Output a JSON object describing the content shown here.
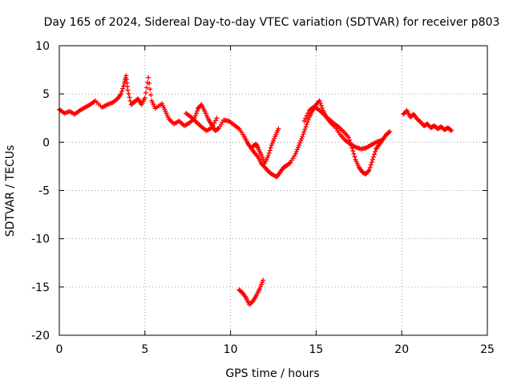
{
  "chart_data": {
    "type": "scatter",
    "title": "Day 165 of 2024, Sidereal Day-to-day VTEC variation (SDTVAR) for receiver p803",
    "xlabel": "GPS time / hours",
    "ylabel": "SDTVAR / TECUs",
    "xlim": [
      0,
      25
    ],
    "ylim": [
      -20,
      10
    ],
    "xticks": [
      0,
      5,
      10,
      15,
      20,
      25
    ],
    "xtick_labels": [
      "0",
      "5",
      "10",
      "15",
      "20",
      "25"
    ],
    "yticks": [
      10,
      5,
      0,
      -5,
      -10,
      -15,
      -20
    ],
    "ytick_labels": [
      "10",
      "5",
      "0",
      "-5",
      "-10",
      "-15",
      "-20"
    ],
    "grid": true,
    "legend": "none",
    "marker": "+",
    "color": "#ff0000",
    "series": [
      {
        "name": "SDTVAR",
        "points": [
          [
            0.0,
            3.4
          ],
          [
            0.3,
            3.0
          ],
          [
            0.6,
            3.2
          ],
          [
            0.9,
            2.9
          ],
          [
            1.2,
            3.3
          ],
          [
            1.5,
            3.6
          ],
          [
            1.8,
            3.9
          ],
          [
            2.1,
            4.3
          ],
          [
            2.5,
            3.6
          ],
          [
            2.8,
            3.9
          ],
          [
            3.1,
            4.1
          ],
          [
            3.4,
            4.5
          ],
          [
            3.6,
            5.0
          ],
          [
            3.8,
            6.1
          ],
          [
            3.9,
            6.9
          ],
          [
            4.0,
            5.4
          ],
          [
            4.2,
            3.9
          ],
          [
            4.4,
            4.2
          ],
          [
            4.6,
            4.5
          ],
          [
            4.8,
            3.9
          ],
          [
            5.0,
            4.6
          ],
          [
            5.2,
            6.7
          ],
          [
            5.4,
            4.3
          ],
          [
            5.6,
            3.5
          ],
          [
            6.0,
            4.0
          ],
          [
            6.2,
            3.2
          ],
          [
            6.4,
            2.4
          ],
          [
            6.7,
            1.9
          ],
          [
            7.0,
            2.2
          ],
          [
            7.3,
            1.7
          ],
          [
            7.6,
            2.0
          ],
          [
            7.9,
            2.5
          ],
          [
            8.1,
            3.5
          ],
          [
            8.3,
            3.9
          ],
          [
            8.5,
            3.2
          ],
          [
            8.7,
            2.4
          ],
          [
            8.9,
            1.8
          ],
          [
            9.1,
            1.2
          ],
          [
            9.3,
            1.4
          ],
          [
            9.6,
            2.3
          ],
          [
            9.9,
            2.2
          ],
          [
            10.2,
            1.8
          ],
          [
            10.5,
            1.4
          ],
          [
            10.8,
            0.6
          ],
          [
            11.0,
            -0.1
          ],
          [
            11.2,
            -0.6
          ],
          [
            11.4,
            -1.1
          ],
          [
            11.6,
            -1.5
          ],
          [
            11.8,
            -2.2
          ],
          [
            12.0,
            -2.6
          ],
          [
            12.2,
            -3.0
          ],
          [
            12.4,
            -3.3
          ],
          [
            12.7,
            -3.6
          ],
          [
            12.9,
            -3.1
          ],
          [
            13.1,
            -2.6
          ],
          [
            13.3,
            -2.4
          ],
          [
            13.5,
            -2.1
          ],
          [
            13.8,
            -1.2
          ],
          [
            14.0,
            -0.3
          ],
          [
            14.2,
            0.6
          ],
          [
            14.4,
            1.6
          ],
          [
            14.6,
            2.6
          ],
          [
            14.8,
            3.3
          ],
          [
            15.0,
            3.9
          ],
          [
            15.2,
            4.3
          ],
          [
            15.4,
            3.3
          ],
          [
            15.6,
            2.6
          ],
          [
            15.8,
            2.3
          ],
          [
            16.0,
            2.0
          ],
          [
            16.3,
            1.6
          ],
          [
            16.6,
            1.1
          ],
          [
            16.9,
            0.5
          ],
          [
            17.1,
            -0.6
          ],
          [
            17.3,
            -1.8
          ],
          [
            17.5,
            -2.6
          ],
          [
            17.7,
            -3.1
          ],
          [
            17.9,
            -3.3
          ],
          [
            18.1,
            -2.9
          ],
          [
            18.3,
            -1.8
          ],
          [
            18.5,
            -0.7
          ],
          [
            18.7,
            -0.2
          ],
          [
            18.9,
            0.3
          ],
          [
            19.1,
            0.8
          ],
          [
            19.3,
            1.1
          ],
          [
            11.3,
            -0.4
          ],
          [
            11.5,
            -0.2
          ],
          [
            11.6,
            -0.6
          ],
          [
            11.8,
            -1.3
          ],
          [
            12.0,
            -2.2
          ],
          [
            12.2,
            -1.4
          ],
          [
            12.4,
            -0.3
          ],
          [
            12.6,
            0.6
          ],
          [
            12.8,
            1.4
          ],
          [
            14.3,
            2.2
          ],
          [
            14.6,
            3.3
          ],
          [
            14.9,
            3.7
          ],
          [
            15.2,
            3.3
          ],
          [
            15.5,
            2.8
          ],
          [
            15.8,
            2.1
          ],
          [
            16.1,
            1.6
          ],
          [
            16.4,
            0.8
          ],
          [
            16.7,
            0.2
          ],
          [
            17.0,
            -0.2
          ],
          [
            17.3,
            -0.5
          ],
          [
            17.6,
            -0.7
          ],
          [
            17.9,
            -0.6
          ],
          [
            18.2,
            -0.3
          ],
          [
            18.5,
            0.0
          ],
          [
            18.8,
            0.2
          ],
          [
            7.4,
            3.0
          ],
          [
            7.7,
            2.6
          ],
          [
            8.0,
            2.1
          ],
          [
            8.3,
            1.6
          ],
          [
            8.6,
            1.2
          ],
          [
            8.9,
            1.5
          ],
          [
            9.2,
            2.5
          ],
          [
            20.1,
            2.9
          ],
          [
            20.3,
            3.3
          ],
          [
            20.5,
            2.6
          ],
          [
            20.7,
            2.9
          ],
          [
            20.9,
            2.4
          ],
          [
            21.1,
            2.1
          ],
          [
            21.3,
            1.7
          ],
          [
            21.5,
            1.9
          ],
          [
            21.7,
            1.5
          ],
          [
            21.9,
            1.7
          ],
          [
            22.1,
            1.4
          ],
          [
            22.3,
            1.6
          ],
          [
            22.5,
            1.3
          ],
          [
            22.7,
            1.5
          ],
          [
            22.9,
            1.2
          ],
          [
            10.5,
            -15.3
          ],
          [
            10.7,
            -15.6
          ],
          [
            10.9,
            -16.1
          ],
          [
            11.1,
            -16.8
          ],
          [
            11.3,
            -16.5
          ],
          [
            11.5,
            -15.9
          ],
          [
            11.7,
            -15.2
          ],
          [
            11.9,
            -14.3
          ]
        ]
      }
    ]
  }
}
